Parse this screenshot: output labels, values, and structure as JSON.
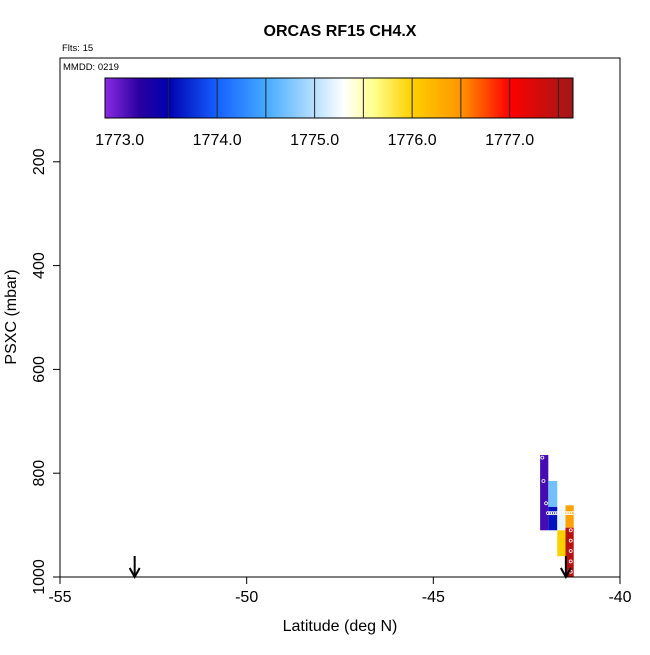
{
  "chart_data": {
    "type": "heatmap",
    "title": "ORCAS RF15 CH4.X",
    "corner_labels": {
      "flights": "Flts: 15",
      "date": "MMDD: 0219"
    },
    "xlabel": "Latitude (deg N)",
    "ylabel": "PSXC (mbar)",
    "xlim": [
      -55,
      -40
    ],
    "ylim": [
      1000,
      0
    ],
    "xticks": [
      -55,
      -50,
      -45,
      -40
    ],
    "xtick_labels": [
      "-55",
      "-50",
      "-45",
      "-40"
    ],
    "yticks": [
      200,
      400,
      600,
      800,
      1000
    ],
    "ytick_labels": [
      "200",
      "400",
      "600",
      "800",
      "1000"
    ],
    "colorbar": {
      "min": 1772.85,
      "max": 1777.65,
      "ticks": [
        1773.0,
        1774.0,
        1775.0,
        1776.0,
        1777.0
      ],
      "tick_labels": [
        "1773.0",
        "1774.0",
        "1775.0",
        "1776.0",
        "1777.0"
      ],
      "color_stops": [
        {
          "v": 1772.85,
          "c": "#8a2be2"
        },
        {
          "v": 1773.2,
          "c": "#2a00a0"
        },
        {
          "v": 1773.5,
          "c": "#0000b0"
        },
        {
          "v": 1774.0,
          "c": "#1560ff"
        },
        {
          "v": 1774.5,
          "c": "#44aaff"
        },
        {
          "v": 1775.0,
          "c": "#b8e0ff"
        },
        {
          "v": 1775.3,
          "c": "#ffffff"
        },
        {
          "v": 1775.6,
          "c": "#ffff90"
        },
        {
          "v": 1776.0,
          "c": "#ffd000"
        },
        {
          "v": 1776.5,
          "c": "#ff9500"
        },
        {
          "v": 1777.0,
          "c": "#ff0000"
        },
        {
          "v": 1777.65,
          "c": "#a01818"
        }
      ]
    },
    "cells": [
      {
        "lat0": -42.14,
        "lat1": -41.92,
        "p0": 765,
        "p1": 910,
        "value": 1773.1
      },
      {
        "lat0": -41.92,
        "lat1": -41.68,
        "p0": 815,
        "p1": 865,
        "value": 1774.7
      },
      {
        "lat0": -41.92,
        "lat1": -41.68,
        "p0": 865,
        "p1": 910,
        "value": 1773.6
      },
      {
        "lat0": -41.68,
        "lat1": -41.46,
        "p0": 870,
        "p1": 910,
        "value": 1775.2
      },
      {
        "lat0": -41.68,
        "lat1": -41.46,
        "p0": 910,
        "p1": 960,
        "value": 1776.0
      },
      {
        "lat0": -41.46,
        "lat1": -41.24,
        "p0": 862,
        "p1": 905,
        "value": 1776.4
      },
      {
        "lat0": -41.46,
        "lat1": -41.24,
        "p0": 905,
        "p1": 1000,
        "value": 1777.5
      }
    ],
    "track_points": [
      {
        "lat": -42.08,
        "p": 770
      },
      {
        "lat": -42.05,
        "p": 815
      },
      {
        "lat": -41.98,
        "p": 858
      },
      {
        "lat": -41.93,
        "p": 877
      },
      {
        "lat": -41.87,
        "p": 877
      },
      {
        "lat": -41.81,
        "p": 877
      },
      {
        "lat": -41.75,
        "p": 877
      },
      {
        "lat": -41.69,
        "p": 877
      },
      {
        "lat": -41.63,
        "p": 877
      },
      {
        "lat": -41.57,
        "p": 877
      },
      {
        "lat": -41.51,
        "p": 877
      },
      {
        "lat": -41.45,
        "p": 877
      },
      {
        "lat": -41.39,
        "p": 877
      },
      {
        "lat": -41.33,
        "p": 877
      },
      {
        "lat": -41.27,
        "p": 877
      },
      {
        "lat": -41.32,
        "p": 910
      },
      {
        "lat": -41.32,
        "p": 930
      },
      {
        "lat": -41.32,
        "p": 950
      },
      {
        "lat": -41.32,
        "p": 970
      },
      {
        "lat": -41.32,
        "p": 990
      }
    ],
    "markers": [
      {
        "type": "arrow-down",
        "lat": -53.0
      },
      {
        "type": "arrow-down",
        "lat": -41.45
      }
    ]
  }
}
